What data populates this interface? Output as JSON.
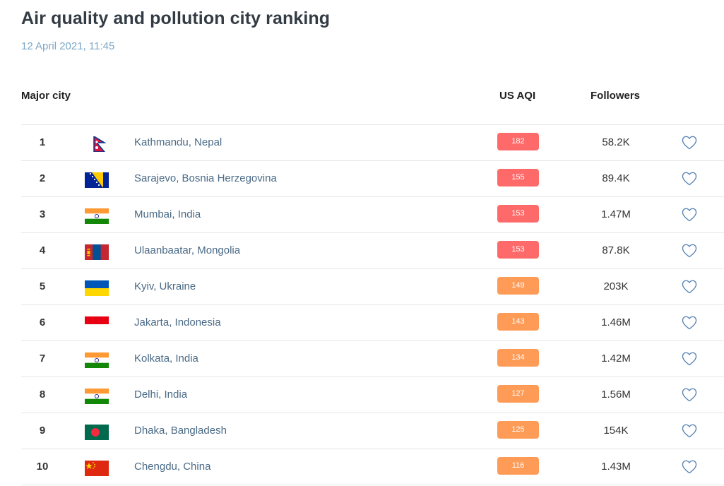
{
  "page": {
    "title": "Air quality and pollution city ranking",
    "timestamp": "12 April 2021, 11:45"
  },
  "table": {
    "headers": {
      "city": "Major city",
      "aqi": "US AQI",
      "followers": "Followers"
    },
    "colors": {
      "aqi_red": "#fe6a69",
      "aqi_orange": "#fe9b57",
      "link": "#4a6a86",
      "heart": "#5a86b5"
    },
    "rows": [
      {
        "rank": "1",
        "flag": "nepal",
        "city": "Kathmandu, Nepal",
        "aqi": "182",
        "level": "red",
        "followers": "58.2K"
      },
      {
        "rank": "2",
        "flag": "bosnia",
        "city": "Sarajevo, Bosnia Herzegovina",
        "aqi": "155",
        "level": "red",
        "followers": "89.4K"
      },
      {
        "rank": "3",
        "flag": "india",
        "city": "Mumbai, India",
        "aqi": "153",
        "level": "red",
        "followers": "1.47M"
      },
      {
        "rank": "4",
        "flag": "mongolia",
        "city": "Ulaanbaatar, Mongolia",
        "aqi": "153",
        "level": "red",
        "followers": "87.8K"
      },
      {
        "rank": "5",
        "flag": "ukraine",
        "city": "Kyiv, Ukraine",
        "aqi": "149",
        "level": "orange",
        "followers": "203K"
      },
      {
        "rank": "6",
        "flag": "indonesia",
        "city": "Jakarta, Indonesia",
        "aqi": "143",
        "level": "orange",
        "followers": "1.46M"
      },
      {
        "rank": "7",
        "flag": "india",
        "city": "Kolkata, India",
        "aqi": "134",
        "level": "orange",
        "followers": "1.42M"
      },
      {
        "rank": "8",
        "flag": "india",
        "city": "Delhi, India",
        "aqi": "127",
        "level": "orange",
        "followers": "1.56M"
      },
      {
        "rank": "9",
        "flag": "bangladesh",
        "city": "Dhaka, Bangladesh",
        "aqi": "125",
        "level": "orange",
        "followers": "154K"
      },
      {
        "rank": "10",
        "flag": "china",
        "city": "Chengdu, China",
        "aqi": "116",
        "level": "orange",
        "followers": "1.43M"
      }
    ]
  }
}
